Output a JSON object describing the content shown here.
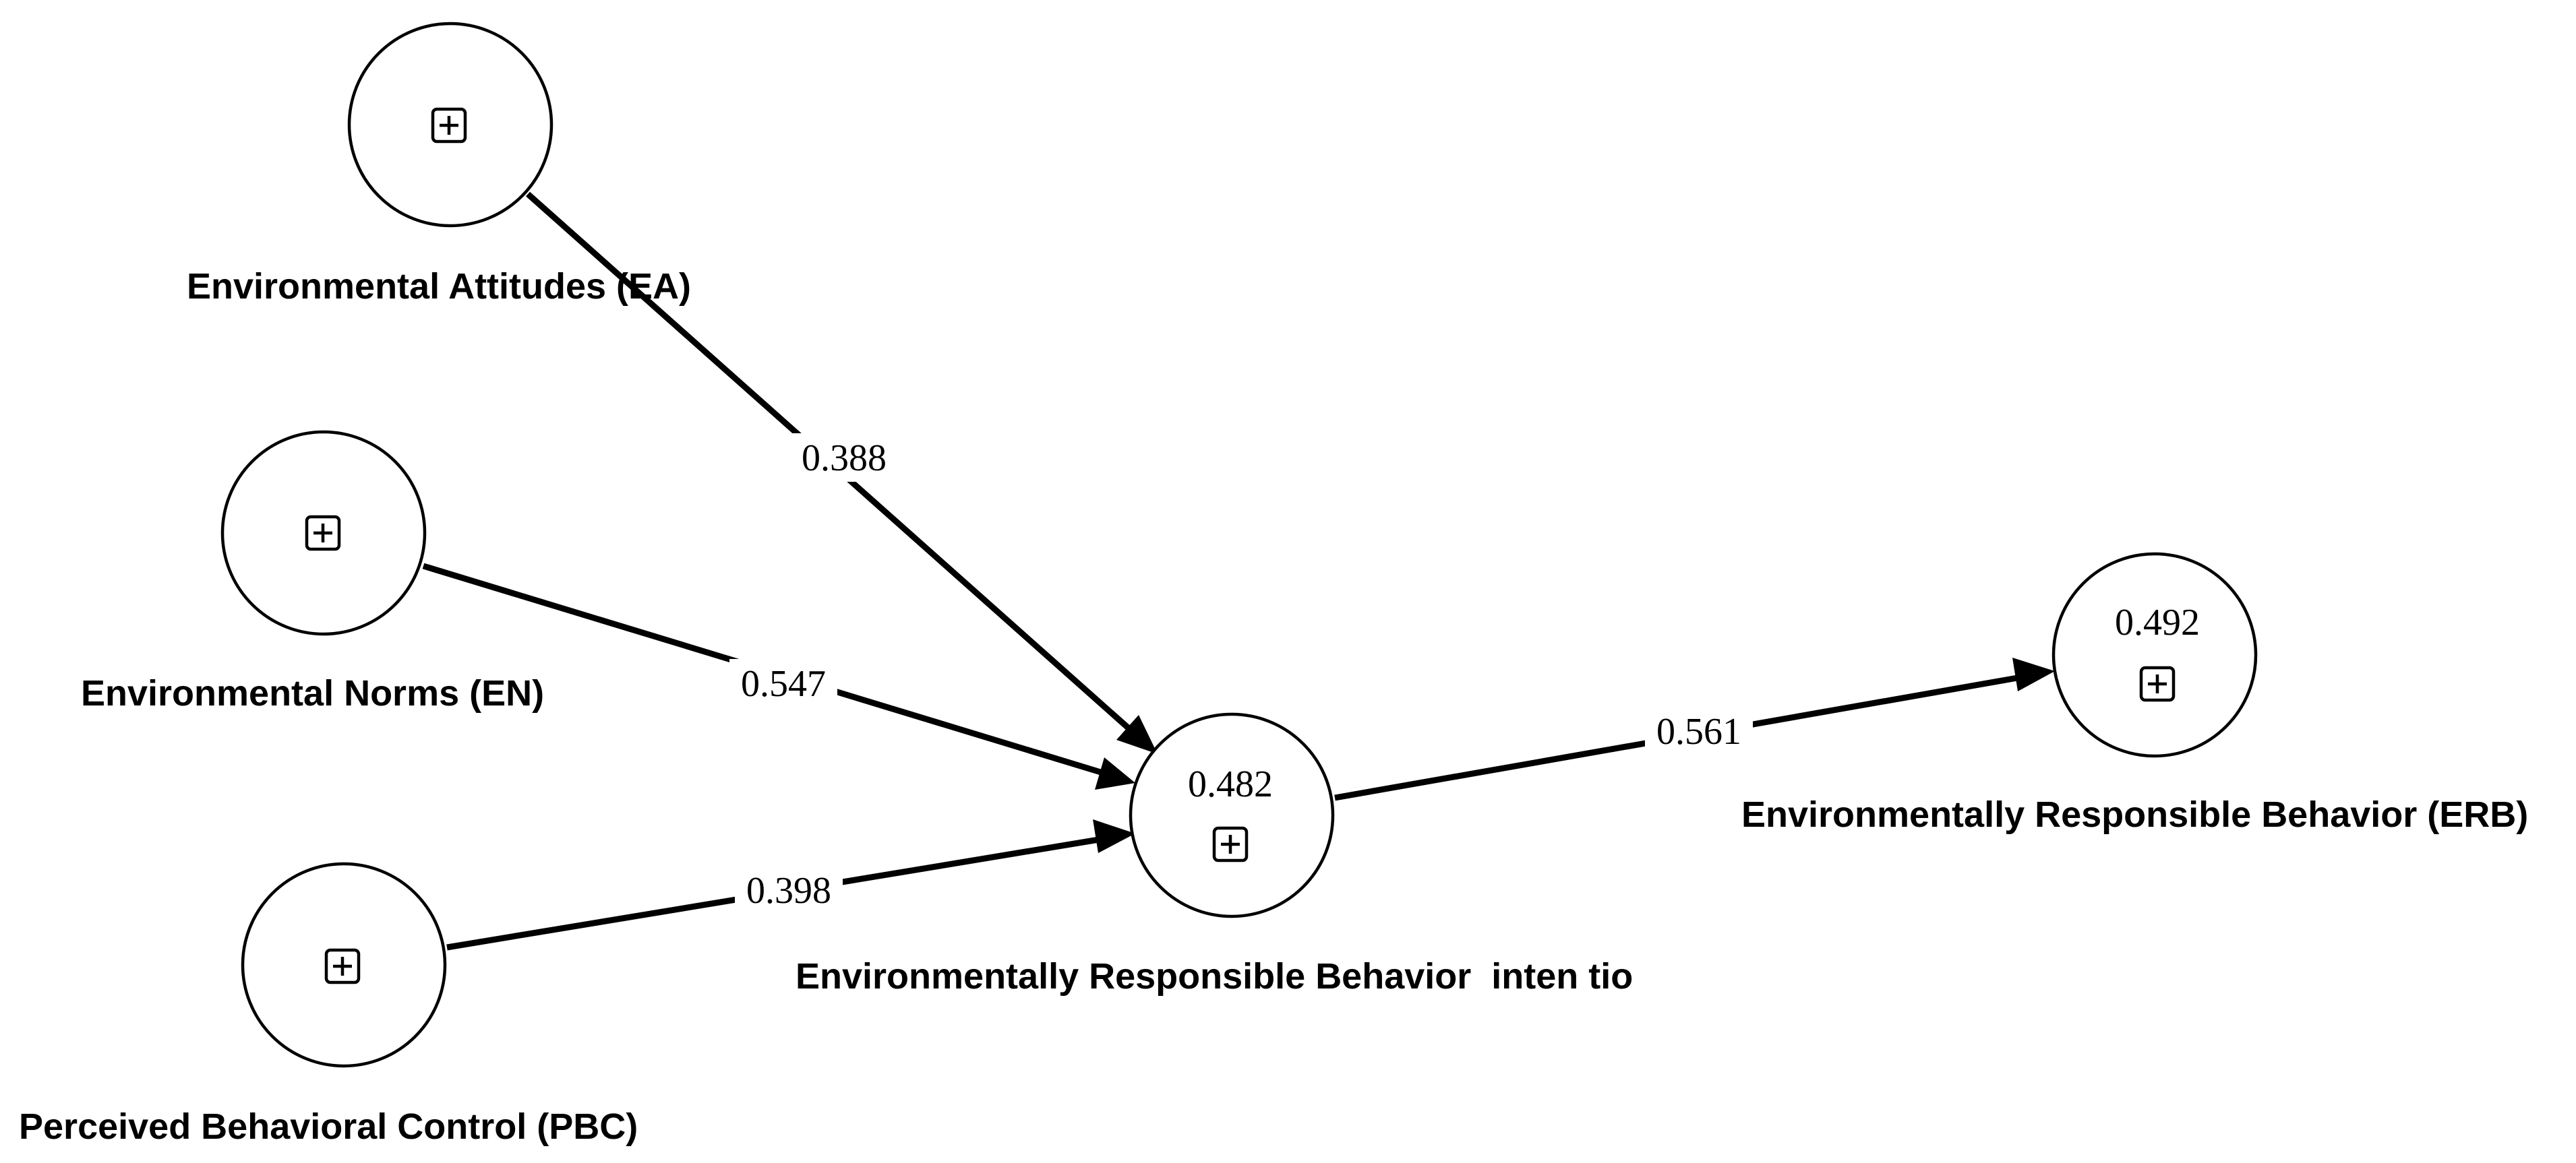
{
  "nodes": {
    "ea": {
      "label": "Environmental Attitudes (EA)",
      "r2": ""
    },
    "en": {
      "label": "Environmental Norms (EN)",
      "r2": ""
    },
    "pbc": {
      "label": "Perceived Behavioral Control (PBC)",
      "r2": ""
    },
    "erbi": {
      "label": "Environmentally Responsible Behavior  inten tio",
      "r2": "0.482"
    },
    "erb": {
      "label": "Environmentally Responsible Behavior (ERB)",
      "r2": "0.492"
    }
  },
  "paths": {
    "ea_erbi": "0.388",
    "en_erbi": "0.547",
    "pbc_erbi": "0.398",
    "erbi_erb": "0.561"
  },
  "colors": {
    "line": "#000000",
    "background": "#ffffff"
  },
  "icons": {
    "expand": "plus-in-box-icon"
  }
}
